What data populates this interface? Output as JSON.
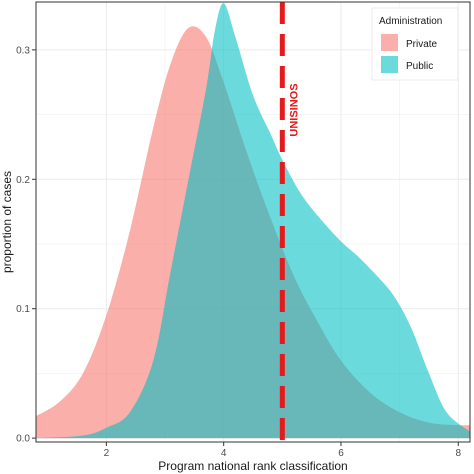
{
  "chart_data": {
    "type": "area",
    "xlabel": "Program national rank classification",
    "ylabel": "proportion of cases",
    "xlim": [
      0.8,
      8.2
    ],
    "ylim": [
      -0.003,
      0.337
    ],
    "xticks": [
      2,
      4,
      6,
      8
    ],
    "yticks": [
      0.0,
      0.1,
      0.2,
      0.3
    ],
    "ytick_labels": [
      "0.0",
      "0.1",
      "0.2",
      "0.3"
    ],
    "grid": true,
    "legend": {
      "title": "Administration",
      "placement": "top-right",
      "entries": [
        "Private",
        "Public"
      ]
    },
    "series": [
      {
        "name": "Private",
        "color": "#F8766D",
        "x": [
          0.8,
          1.2,
          1.6,
          2.0,
          2.4,
          2.8,
          3.1,
          3.4,
          3.7,
          4.0,
          4.4,
          4.8,
          5.2,
          5.6,
          6.0,
          6.5,
          7.0,
          7.5,
          8.0,
          8.2
        ],
        "values": [
          0.017,
          0.028,
          0.05,
          0.095,
          0.16,
          0.24,
          0.29,
          0.317,
          0.31,
          0.275,
          0.22,
          0.17,
          0.125,
          0.09,
          0.06,
          0.035,
          0.02,
          0.012,
          0.01,
          0.01
        ]
      },
      {
        "name": "Public",
        "color": "#00BFC4",
        "x": [
          0.8,
          1.6,
          2.0,
          2.4,
          2.8,
          3.1,
          3.4,
          3.7,
          3.85,
          4.0,
          4.2,
          4.5,
          4.8,
          5.0,
          5.3,
          5.6,
          6.0,
          6.3,
          6.6,
          6.9,
          7.2,
          7.5,
          7.8,
          8.2
        ],
        "values": [
          0.0,
          0.002,
          0.008,
          0.02,
          0.06,
          0.13,
          0.2,
          0.27,
          0.315,
          0.336,
          0.31,
          0.265,
          0.235,
          0.215,
          0.19,
          0.172,
          0.152,
          0.14,
          0.126,
          0.11,
          0.085,
          0.05,
          0.02,
          0.005
        ]
      }
    ],
    "annotations": [
      {
        "type": "vline",
        "x": 5,
        "color": "#E41A1C",
        "dash": true,
        "label": "UNISINOS"
      }
    ]
  }
}
